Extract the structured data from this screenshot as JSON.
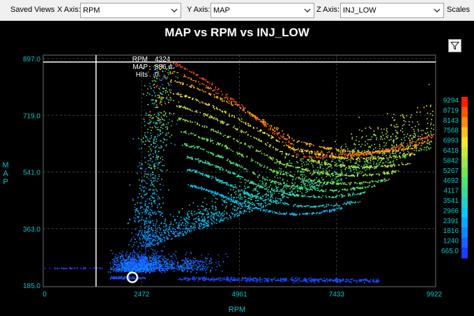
{
  "toolbar": {
    "saved_views_label": "Saved Views",
    "x_axis_label": "X Axis:",
    "x_axis_value": "RPM",
    "y_axis_label": "Y Axis:",
    "y_axis_value": "MAP",
    "z_axis_label": "Z Axis:",
    "z_axis_value": "INJ_LOW",
    "scales_label": "Scales"
  },
  "icons": [
    "chevron-down-icon",
    "filter-icon"
  ],
  "chart_data": {
    "type": "scatter",
    "title": "MAP vs RPM vs INJ_LOW",
    "xlabel": "RPM",
    "ylabel": "MAP",
    "xlim": [
      0,
      9922
    ],
    "ylim": [
      185,
      897
    ],
    "x_ticks": [
      "0",
      "2472",
      "4961",
      "7433",
      "9922"
    ],
    "y_ticks": [
      "185.0",
      "363.0",
      "541.0",
      "719.0",
      "897.0"
    ],
    "colorbar": {
      "labels": [
        "9294",
        "8719",
        "8143",
        "7568",
        "6993",
        "6418",
        "5842",
        "5267",
        "4692",
        "4117",
        "3541",
        "2966",
        "2391",
        "1816",
        "1240",
        "665.0"
      ],
      "range": [
        665,
        9294
      ]
    },
    "cursor": {
      "rpm_label": "RPM",
      "rpm_value": "4324",
      "map_label": "MAP",
      "map_value": "886.4",
      "hits_label": "Hits",
      "hits_value": "0",
      "x": 4324,
      "y": 886.4
    },
    "vertical_marker_x": 1309,
    "selected_point": {
      "x": 2235,
      "y": 210
    },
    "colors": {
      "grid": "#3a3a3a",
      "tick_text": "#00c8c8",
      "axis_title": "#00c8c8",
      "low": "#1e3cff",
      "high": "#ff1e00"
    }
  }
}
